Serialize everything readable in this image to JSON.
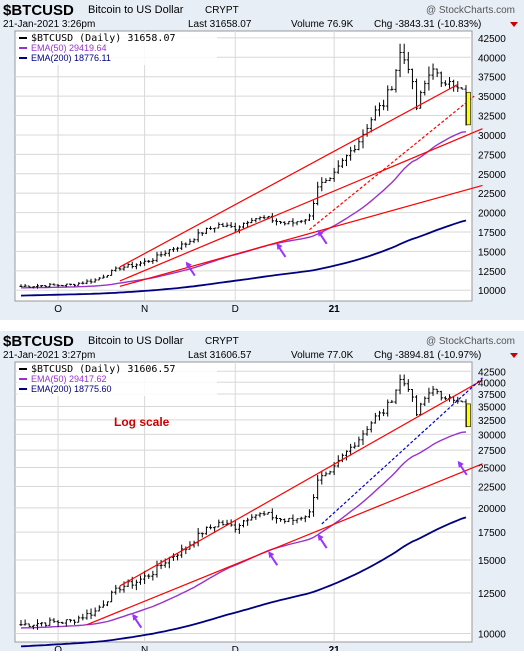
{
  "colors": {
    "header_bg": "#e8eef6",
    "plot_bg": "#ffffff",
    "price": "#000000",
    "ema50": "#9933cc",
    "ema200": "#000080",
    "trend": "#ff0000",
    "dashed_red": "#ff0000",
    "dashed_blue": "#0000cc",
    "arrow": "#9933ff",
    "drop_bar": "#ffff00",
    "chg_neg": "#cc0000",
    "log_note": "#cc0000"
  },
  "chart_data": [
    {
      "type": "ohlc",
      "symbol": "$BTCUSD",
      "description": "Bitcoin to US Dollar",
      "exchange": "CRYPT",
      "date": "21-Jan-2021 3:26pm",
      "watermark": "@ StockCharts.com",
      "last": "Last 31658.07",
      "volume": "Volume 76.9K",
      "chg": "Chg -3843.31 (-10.83%)",
      "legend": {
        "price": "$BTCUSD (Daily) 31658.07",
        "ema50": "EMA(50) 29419.64",
        "ema200": "EMA(200) 18776.11"
      },
      "y_scale": "linear",
      "ylim": [
        9000,
        43000
      ],
      "y_ticks": [
        "10000",
        "12500",
        "15000",
        "17500",
        "20000",
        "22500",
        "25000",
        "27500",
        "30000",
        "32500",
        "35000",
        "37500",
        "40000",
        "42500"
      ],
      "x_ticks": [
        "O",
        "N",
        "D",
        "21"
      ],
      "note": "",
      "trendlines": [
        {
          "color": "trend",
          "style": "solid",
          "x1": 24,
          "y1": 13000,
          "x2": 106,
          "y2": 36500
        },
        {
          "color": "trend",
          "style": "solid",
          "x1": 24,
          "y1": 11200,
          "x2": 112,
          "y2": 30800
        },
        {
          "color": "trend",
          "style": "solid",
          "x1": 24,
          "y1": 10500,
          "x2": 112,
          "y2": 23500
        },
        {
          "color": "dashed_red",
          "style": "dashed",
          "x1": 70,
          "y1": 17800,
          "x2": 110,
          "y2": 35000
        }
      ],
      "arrows": [
        {
          "x": 40,
          "y": 14200
        },
        {
          "x": 62,
          "y": 16600
        },
        {
          "x": 72,
          "y": 18300
        }
      ],
      "drop_bar": {
        "x": 108.6,
        "y1": 31300,
        "y2": 35500
      }
    },
    {
      "type": "ohlc",
      "symbol": "$BTCUSD",
      "description": "Bitcoin to US Dollar",
      "exchange": "CRYPT",
      "date": "21-Jan-2021 3:27pm",
      "watermark": "@ StockCharts.com",
      "last": "Last 31606.57",
      "volume": "Volume 77.0K",
      "chg": "Chg -3894.81 (-10.97%)",
      "legend": {
        "price": "$BTCUSD (Daily) 31606.57",
        "ema50": "EMA(50) 29417.62",
        "ema200": "EMA(200) 18775.60"
      },
      "y_scale": "log",
      "ylim": [
        9700,
        44000
      ],
      "y_ticks": [
        "10000",
        "12500",
        "15000",
        "17500",
        "20000",
        "22500",
        "25000",
        "27500",
        "30000",
        "32500",
        "35000",
        "37500",
        "40000",
        "42500"
      ],
      "x_ticks": [
        "O",
        "N",
        "D",
        "21"
      ],
      "note": "Log scale",
      "trendlines": [
        {
          "color": "trend",
          "style": "solid",
          "x1": 24,
          "y1": 13000,
          "x2": 112,
          "y2": 40500
        },
        {
          "color": "trend",
          "style": "solid",
          "x1": 16,
          "y1": 10500,
          "x2": 112,
          "y2": 25500
        },
        {
          "color": "dashed_blue",
          "style": "dashed",
          "x1": 73,
          "y1": 18300,
          "x2": 112,
          "y2": 41000
        }
      ],
      "arrows": [
        {
          "x": 27,
          "y": 11400
        },
        {
          "x": 60,
          "y": 16100
        },
        {
          "x": 72,
          "y": 17700
        },
        {
          "x": 106,
          "y": 26500
        }
      ],
      "drop_bar": {
        "x": 108.6,
        "y1": 31300,
        "y2": 35500
      }
    }
  ]
}
